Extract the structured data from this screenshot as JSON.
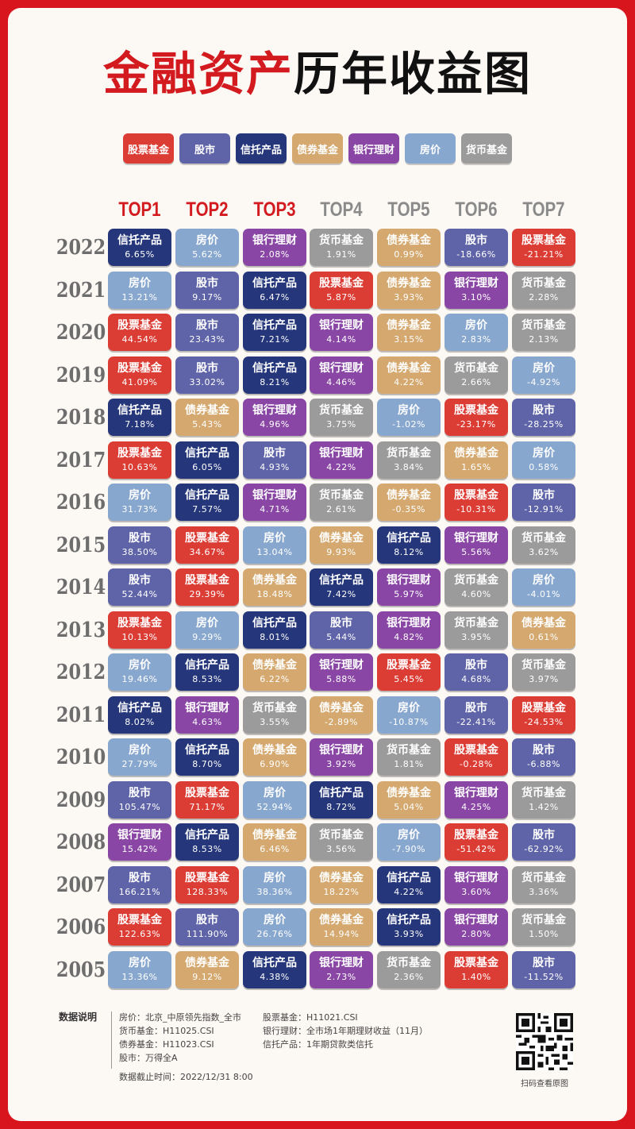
{
  "title_part1": "金融资产",
  "title_part2": "历年收益图",
  "legend": [
    {
      "name": "股票基金",
      "color": "#db3d35"
    },
    {
      "name": "股市",
      "color": "#5f64a9"
    },
    {
      "name": "信托产品",
      "color": "#25377a"
    },
    {
      "name": "债券基金",
      "color": "#d4a86e"
    },
    {
      "name": "银行理财",
      "color": "#8a46a5"
    },
    {
      "name": "房价",
      "color": "#88a7cf"
    },
    {
      "name": "货币基金",
      "color": "#9b9b9b"
    }
  ],
  "headers": [
    {
      "label": "TOP1",
      "color": "#d21a1f"
    },
    {
      "label": "TOP2",
      "color": "#d21a1f"
    },
    {
      "label": "TOP3",
      "color": "#d21a1f"
    },
    {
      "label": "TOP4",
      "color": "#8a8a8a"
    },
    {
      "label": "TOP5",
      "color": "#8a8a8a"
    },
    {
      "label": "TOP6",
      "color": "#8a8a8a"
    },
    {
      "label": "TOP7",
      "color": "#8a8a8a"
    }
  ],
  "rows": [
    {
      "year": "2022",
      "cells": [
        [
          "信托产品",
          "6.65%"
        ],
        [
          "房价",
          "5.62%"
        ],
        [
          "银行理财",
          "2.08%"
        ],
        [
          "货币基金",
          "1.91%"
        ],
        [
          "债券基金",
          "0.99%"
        ],
        [
          "股市",
          "-18.66%"
        ],
        [
          "股票基金",
          "-21.21%"
        ]
      ]
    },
    {
      "year": "2021",
      "cells": [
        [
          "房价",
          "13.21%"
        ],
        [
          "股市",
          "9.17%"
        ],
        [
          "信托产品",
          "6.47%"
        ],
        [
          "股票基金",
          "5.87%"
        ],
        [
          "债券基金",
          "3.93%"
        ],
        [
          "银行理财",
          "3.10%"
        ],
        [
          "货币基金",
          "2.28%"
        ]
      ]
    },
    {
      "year": "2020",
      "cells": [
        [
          "股票基金",
          "44.54%"
        ],
        [
          "股市",
          "23.43%"
        ],
        [
          "信托产品",
          "7.21%"
        ],
        [
          "银行理财",
          "4.14%"
        ],
        [
          "债券基金",
          "3.15%"
        ],
        [
          "房价",
          "2.83%"
        ],
        [
          "货币基金",
          "2.13%"
        ]
      ]
    },
    {
      "year": "2019",
      "cells": [
        [
          "股票基金",
          "41.09%"
        ],
        [
          "股市",
          "33.02%"
        ],
        [
          "信托产品",
          "8.21%"
        ],
        [
          "银行理财",
          "4.46%"
        ],
        [
          "债券基金",
          "4.22%"
        ],
        [
          "货币基金",
          "2.66%"
        ],
        [
          "房价",
          "-4.92%"
        ]
      ]
    },
    {
      "year": "2018",
      "cells": [
        [
          "信托产品",
          "7.18%"
        ],
        [
          "债券基金",
          "5.43%"
        ],
        [
          "银行理财",
          "4.96%"
        ],
        [
          "货币基金",
          "3.75%"
        ],
        [
          "房价",
          "-1.02%"
        ],
        [
          "股票基金",
          "-23.17%"
        ],
        [
          "股市",
          "-28.25%"
        ]
      ]
    },
    {
      "year": "2017",
      "cells": [
        [
          "股票基金",
          "10.63%"
        ],
        [
          "信托产品",
          "6.05%"
        ],
        [
          "股市",
          "4.93%"
        ],
        [
          "银行理财",
          "4.22%"
        ],
        [
          "货币基金",
          "3.84%"
        ],
        [
          "债券基金",
          "1.65%"
        ],
        [
          "房价",
          "0.58%"
        ]
      ]
    },
    {
      "year": "2016",
      "cells": [
        [
          "房价",
          "31.73%"
        ],
        [
          "信托产品",
          "7.57%"
        ],
        [
          "银行理财",
          "4.71%"
        ],
        [
          "货币基金",
          "2.61%"
        ],
        [
          "债券基金",
          "-0.35%"
        ],
        [
          "股票基金",
          "-10.31%"
        ],
        [
          "股市",
          "-12.91%"
        ]
      ]
    },
    {
      "year": "2015",
      "cells": [
        [
          "股市",
          "38.50%"
        ],
        [
          "股票基金",
          "34.67%"
        ],
        [
          "房价",
          "13.04%"
        ],
        [
          "债券基金",
          "9.93%"
        ],
        [
          "信托产品",
          "8.12%"
        ],
        [
          "银行理财",
          "5.56%"
        ],
        [
          "货币基金",
          "3.62%"
        ]
      ]
    },
    {
      "year": "2014",
      "cells": [
        [
          "股市",
          "52.44%"
        ],
        [
          "股票基金",
          "29.39%"
        ],
        [
          "债券基金",
          "18.48%"
        ],
        [
          "信托产品",
          "7.42%"
        ],
        [
          "银行理财",
          "5.97%"
        ],
        [
          "货币基金",
          "4.60%"
        ],
        [
          "房价",
          "-4.01%"
        ]
      ]
    },
    {
      "year": "2013",
      "cells": [
        [
          "股票基金",
          "10.13%"
        ],
        [
          "房价",
          "9.29%"
        ],
        [
          "信托产品",
          "8.01%"
        ],
        [
          "股市",
          "5.44%"
        ],
        [
          "银行理财",
          "4.82%"
        ],
        [
          "货币基金",
          "3.95%"
        ],
        [
          "债券基金",
          "0.61%"
        ]
      ]
    },
    {
      "year": "2012",
      "cells": [
        [
          "房价",
          "19.46%"
        ],
        [
          "信托产品",
          "8.53%"
        ],
        [
          "债券基金",
          "6.22%"
        ],
        [
          "银行理财",
          "5.88%"
        ],
        [
          "股票基金",
          "5.45%"
        ],
        [
          "股市",
          "4.68%"
        ],
        [
          "货币基金",
          "3.97%"
        ]
      ]
    },
    {
      "year": "2011",
      "cells": [
        [
          "信托产品",
          "8.02%"
        ],
        [
          "银行理财",
          "4.63%"
        ],
        [
          "货币基金",
          "3.55%"
        ],
        [
          "债券基金",
          "-2.89%"
        ],
        [
          "房价",
          "-10.87%"
        ],
        [
          "股市",
          "-22.41%"
        ],
        [
          "股票基金",
          "-24.53%"
        ]
      ]
    },
    {
      "year": "2010",
      "cells": [
        [
          "房价",
          "27.79%"
        ],
        [
          "信托产品",
          "8.70%"
        ],
        [
          "债券基金",
          "6.90%"
        ],
        [
          "银行理财",
          "3.92%"
        ],
        [
          "货币基金",
          "1.81%"
        ],
        [
          "股票基金",
          "-0.28%"
        ],
        [
          "股市",
          "-6.88%"
        ]
      ]
    },
    {
      "year": "2009",
      "cells": [
        [
          "股市",
          "105.47%"
        ],
        [
          "股票基金",
          "71.17%"
        ],
        [
          "房价",
          "52.94%"
        ],
        [
          "信托产品",
          "8.72%"
        ],
        [
          "债券基金",
          "5.04%"
        ],
        [
          "银行理财",
          "4.25%"
        ],
        [
          "货币基金",
          "1.42%"
        ]
      ]
    },
    {
      "year": "2008",
      "cells": [
        [
          "银行理财",
          "15.42%"
        ],
        [
          "信托产品",
          "8.53%"
        ],
        [
          "债券基金",
          "6.46%"
        ],
        [
          "货币基金",
          "3.56%"
        ],
        [
          "房价",
          "-7.90%"
        ],
        [
          "股票基金",
          "-51.42%"
        ],
        [
          "股市",
          "-62.92%"
        ]
      ]
    },
    {
      "year": "2007",
      "cells": [
        [
          "股市",
          "166.21%"
        ],
        [
          "股票基金",
          "128.33%"
        ],
        [
          "房价",
          "38.36%"
        ],
        [
          "债券基金",
          "18.22%"
        ],
        [
          "信托产品",
          "4.22%"
        ],
        [
          "银行理财",
          "3.60%"
        ],
        [
          "货币基金",
          "3.36%"
        ]
      ]
    },
    {
      "year": "2006",
      "cells": [
        [
          "股票基金",
          "122.63%"
        ],
        [
          "股市",
          "111.90%"
        ],
        [
          "房价",
          "26.76%"
        ],
        [
          "债券基金",
          "14.94%"
        ],
        [
          "信托产品",
          "3.93%"
        ],
        [
          "银行理财",
          "2.80%"
        ],
        [
          "货币基金",
          "1.50%"
        ]
      ]
    },
    {
      "year": "2005",
      "cells": [
        [
          "房价",
          "13.36%"
        ],
        [
          "债券基金",
          "9.12%"
        ],
        [
          "信托产品",
          "4.38%"
        ],
        [
          "银行理财",
          "2.73%"
        ],
        [
          "货币基金",
          "2.36%"
        ],
        [
          "股票基金",
          "1.40%"
        ],
        [
          "股市",
          "-11.52%"
        ]
      ]
    }
  ],
  "notes": {
    "label": "数据说明",
    "left": [
      "房价：北京_中原领先指数_全市",
      "货币基金：H11025.CSI",
      "债券基金：H11023.CSI",
      "股市：万得全A"
    ],
    "right": [
      "股票基金：H11021.CSI",
      "银行理财：全市场1年期理财收益（11月）",
      "信托产品：1年期贷款类信托"
    ],
    "cutoff": "数据截止时间：2022/12/31 8:00"
  },
  "qr_caption": "扫码查看原图"
}
